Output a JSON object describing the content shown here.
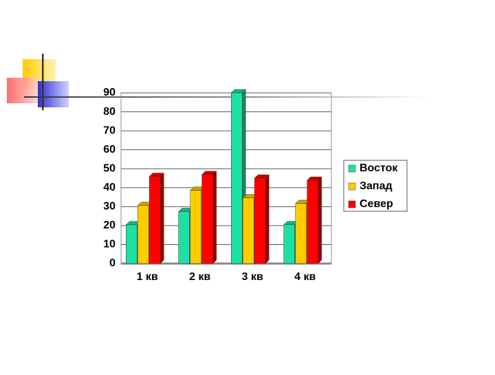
{
  "chart_data": {
    "type": "bar3d",
    "categories": [
      "1 кв",
      "2 кв",
      "3 кв",
      "4 кв"
    ],
    "series": [
      {
        "name": "Восток",
        "color": "#1ee0a4",
        "values": [
          20.4,
          27.4,
          90,
          20.4
        ]
      },
      {
        "name": "Запад",
        "color": "#ffcc00",
        "values": [
          30.6,
          38.6,
          34.6,
          31.6
        ]
      },
      {
        "name": "Север",
        "color": "#ff0000",
        "values": [
          45.9,
          46.9,
          45,
          43.9
        ]
      }
    ],
    "ylim": [
      0,
      90
    ],
    "yticks": [
      0,
      10,
      20,
      30,
      40,
      50,
      60,
      70,
      80,
      90
    ],
    "grid": true,
    "legend": "right"
  }
}
